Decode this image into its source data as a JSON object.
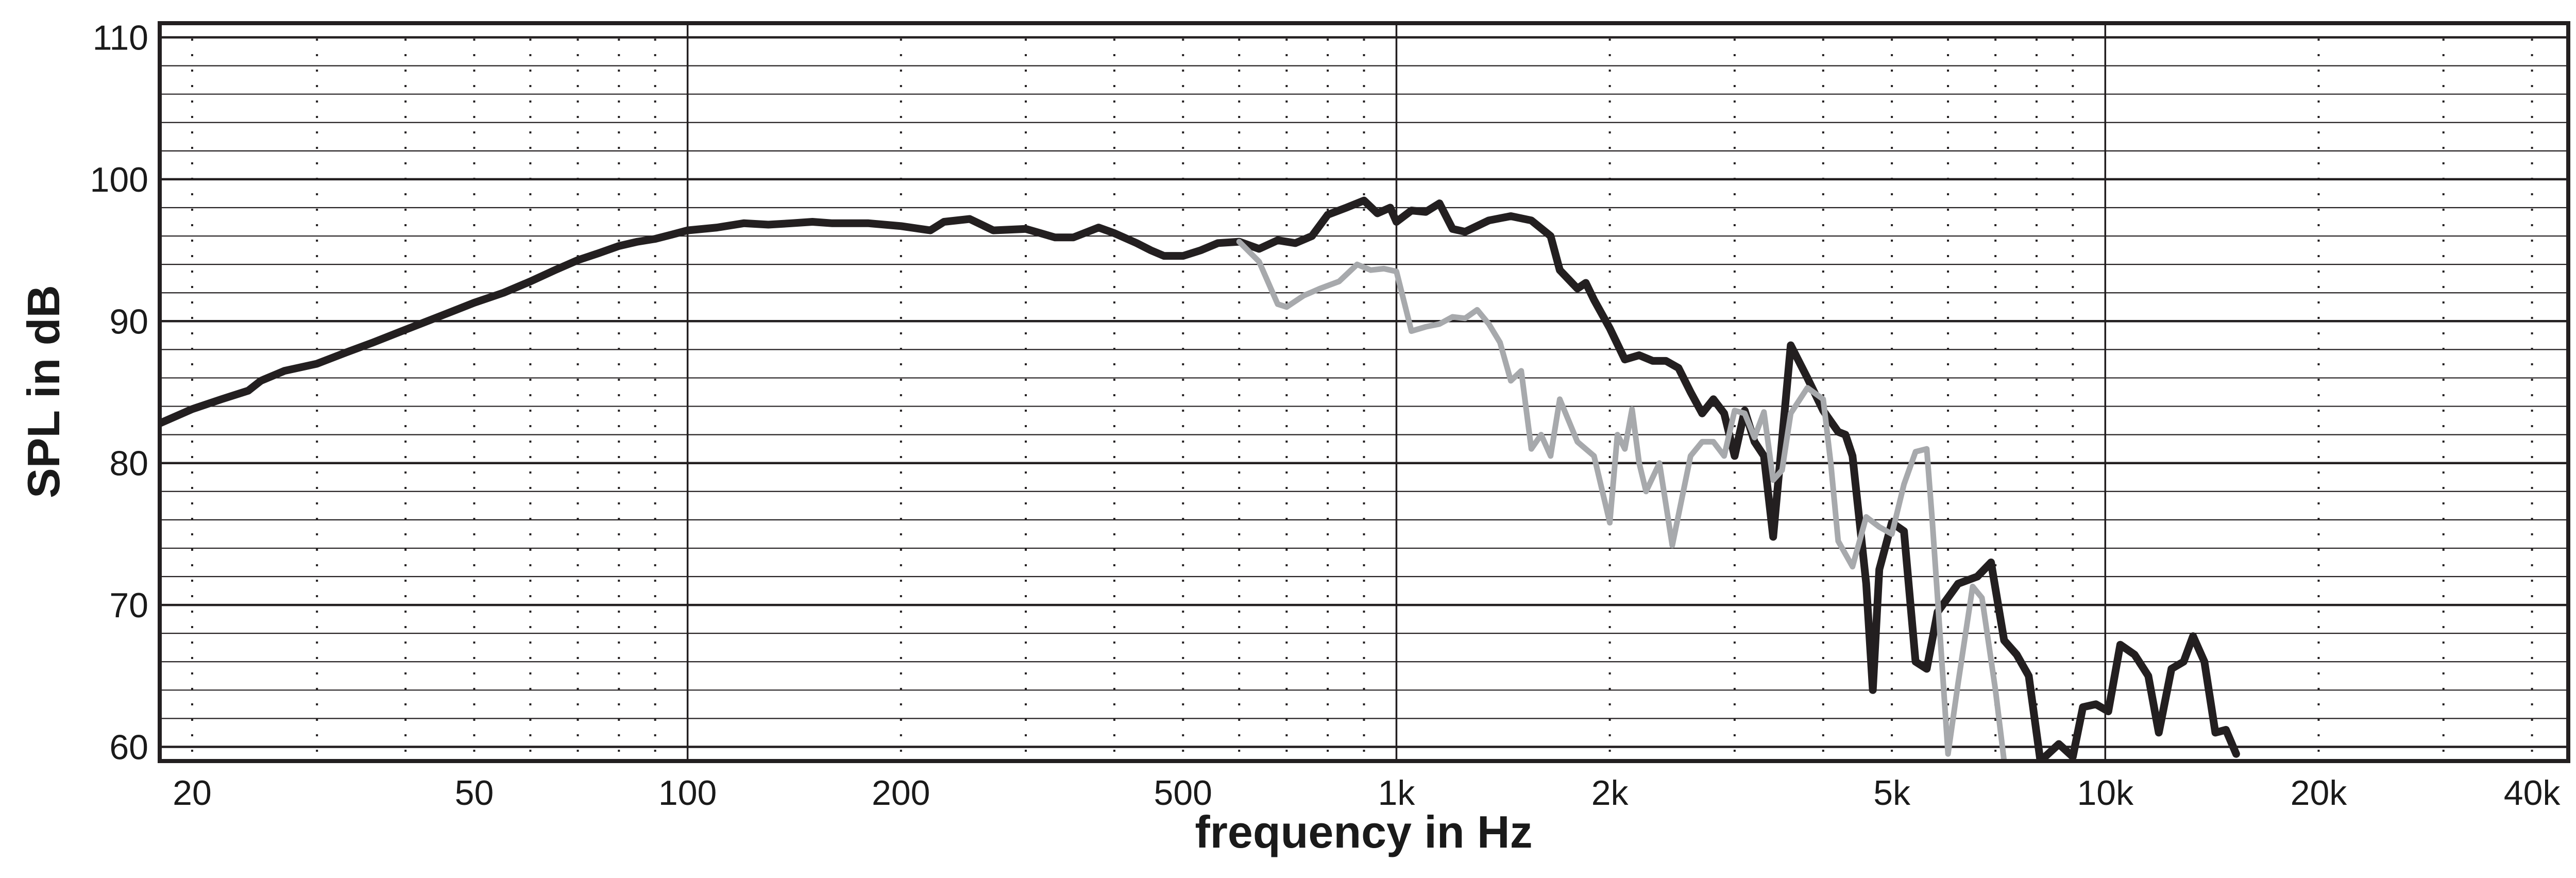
{
  "chart_data": {
    "type": "line",
    "xlabel": "frequency in Hz",
    "ylabel": "SPL in dB",
    "xscale": "log",
    "xlim": [
      18,
      45000
    ],
    "ylim": [
      59,
      111
    ],
    "grid": true,
    "x_tick_values": [
      20,
      50,
      100,
      200,
      500,
      1000,
      2000,
      5000,
      10000,
      20000,
      40000
    ],
    "x_tick_labels": [
      "20",
      "50",
      "100",
      "200",
      "500",
      "1k",
      "2k",
      "5k",
      "10k",
      "20k",
      "40k"
    ],
    "y_tick_values": [
      60,
      70,
      80,
      90,
      100,
      110
    ],
    "y_tick_labels": [
      "60",
      "70",
      "80",
      "90",
      "100",
      "110"
    ],
    "colors": {
      "series_1": "#231f20",
      "series_2": "#a7a9ac",
      "grid": "#231f20"
    },
    "series": [
      {
        "color": "#231f20",
        "points": [
          [
            18,
            82.8
          ],
          [
            20,
            83.8
          ],
          [
            22,
            84.5
          ],
          [
            24,
            85.1
          ],
          [
            25,
            85.8
          ],
          [
            27,
            86.5
          ],
          [
            30,
            87.0
          ],
          [
            33,
            87.8
          ],
          [
            36,
            88.5
          ],
          [
            40,
            89.4
          ],
          [
            45,
            90.4
          ],
          [
            50,
            91.3
          ],
          [
            55,
            92.0
          ],
          [
            60,
            92.8
          ],
          [
            65,
            93.6
          ],
          [
            70,
            94.3
          ],
          [
            75,
            94.8
          ],
          [
            80,
            95.3
          ],
          [
            85,
            95.6
          ],
          [
            90,
            95.8
          ],
          [
            95,
            96.1
          ],
          [
            100,
            96.4
          ],
          [
            110,
            96.6
          ],
          [
            120,
            96.9
          ],
          [
            130,
            96.8
          ],
          [
            140,
            96.9
          ],
          [
            150,
            97.0
          ],
          [
            160,
            96.9
          ],
          [
            180,
            96.9
          ],
          [
            200,
            96.7
          ],
          [
            220,
            96.4
          ],
          [
            230,
            97.0
          ],
          [
            250,
            97.2
          ],
          [
            270,
            96.4
          ],
          [
            300,
            96.5
          ],
          [
            330,
            95.9
          ],
          [
            350,
            95.9
          ],
          [
            380,
            96.6
          ],
          [
            400,
            96.2
          ],
          [
            430,
            95.5
          ],
          [
            450,
            95.0
          ],
          [
            470,
            94.6
          ],
          [
            500,
            94.6
          ],
          [
            530,
            95.0
          ],
          [
            560,
            95.5
          ],
          [
            600,
            95.6
          ],
          [
            640,
            95.1
          ],
          [
            680,
            95.7
          ],
          [
            720,
            95.5
          ],
          [
            760,
            96.0
          ],
          [
            800,
            97.5
          ],
          [
            850,
            98.0
          ],
          [
            900,
            98.5
          ],
          [
            940,
            97.6
          ],
          [
            980,
            98.0
          ],
          [
            1000,
            97.0
          ],
          [
            1050,
            97.8
          ],
          [
            1100,
            97.7
          ],
          [
            1150,
            98.3
          ],
          [
            1200,
            96.5
          ],
          [
            1250,
            96.3
          ],
          [
            1350,
            97.1
          ],
          [
            1450,
            97.4
          ],
          [
            1550,
            97.1
          ],
          [
            1650,
            96.0
          ],
          [
            1700,
            93.6
          ],
          [
            1800,
            92.3
          ],
          [
            1850,
            92.7
          ],
          [
            1900,
            91.5
          ],
          [
            2000,
            89.5
          ],
          [
            2100,
            87.3
          ],
          [
            2200,
            87.6
          ],
          [
            2300,
            87.2
          ],
          [
            2400,
            87.2
          ],
          [
            2500,
            86.7
          ],
          [
            2600,
            85.0
          ],
          [
            2700,
            83.5
          ],
          [
            2800,
            84.5
          ],
          [
            2900,
            83.5
          ],
          [
            3000,
            80.5
          ],
          [
            3100,
            83.7
          ],
          [
            3200,
            81.5
          ],
          [
            3300,
            80.5
          ],
          [
            3400,
            74.8
          ],
          [
            3600,
            88.3
          ],
          [
            3800,
            86.0
          ],
          [
            4000,
            83.7
          ],
          [
            4200,
            82.2
          ],
          [
            4300,
            82.0
          ],
          [
            4400,
            80.5
          ],
          [
            4600,
            71.5
          ],
          [
            4700,
            64.0
          ],
          [
            4800,
            72.5
          ],
          [
            5000,
            75.8
          ],
          [
            5200,
            75.2
          ],
          [
            5400,
            66.0
          ],
          [
            5600,
            65.5
          ],
          [
            5800,
            69.5
          ],
          [
            6200,
            71.5
          ],
          [
            6600,
            72.0
          ],
          [
            6900,
            73.0
          ],
          [
            7200,
            67.5
          ],
          [
            7500,
            66.5
          ],
          [
            7800,
            65.0
          ],
          [
            8100,
            59.0
          ],
          [
            8600,
            60.2
          ],
          [
            9000,
            59.3
          ],
          [
            9300,
            62.8
          ],
          [
            9700,
            63.0
          ],
          [
            10100,
            62.5
          ],
          [
            10500,
            67.2
          ],
          [
            11000,
            66.5
          ],
          [
            11500,
            65.0
          ],
          [
            11900,
            61.0
          ],
          [
            12400,
            65.5
          ],
          [
            12900,
            66.0
          ],
          [
            13300,
            67.8
          ],
          [
            13800,
            66.0
          ],
          [
            14300,
            61.0
          ],
          [
            14800,
            61.2
          ],
          [
            15300,
            59.5
          ]
        ]
      },
      {
        "color": "#a7a9ac",
        "points": [
          [
            600,
            95.6
          ],
          [
            640,
            94.2
          ],
          [
            680,
            91.2
          ],
          [
            700,
            91.0
          ],
          [
            740,
            91.8
          ],
          [
            780,
            92.3
          ],
          [
            830,
            92.8
          ],
          [
            880,
            94.0
          ],
          [
            920,
            93.6
          ],
          [
            960,
            93.7
          ],
          [
            1000,
            93.5
          ],
          [
            1050,
            89.3
          ],
          [
            1100,
            89.6
          ],
          [
            1150,
            89.8
          ],
          [
            1200,
            90.3
          ],
          [
            1250,
            90.2
          ],
          [
            1300,
            90.8
          ],
          [
            1350,
            89.8
          ],
          [
            1400,
            88.5
          ],
          [
            1450,
            85.8
          ],
          [
            1500,
            86.5
          ],
          [
            1550,
            81.0
          ],
          [
            1600,
            82.0
          ],
          [
            1650,
            80.5
          ],
          [
            1700,
            84.5
          ],
          [
            1800,
            81.5
          ],
          [
            1900,
            80.5
          ],
          [
            2000,
            75.8
          ],
          [
            2050,
            82.0
          ],
          [
            2100,
            81.0
          ],
          [
            2150,
            83.8
          ],
          [
            2200,
            80.0
          ],
          [
            2250,
            78.0
          ],
          [
            2350,
            80.0
          ],
          [
            2450,
            74.2
          ],
          [
            2600,
            80.5
          ],
          [
            2700,
            81.5
          ],
          [
            2800,
            81.5
          ],
          [
            2900,
            80.5
          ],
          [
            3000,
            83.7
          ],
          [
            3100,
            83.5
          ],
          [
            3200,
            81.8
          ],
          [
            3300,
            83.6
          ],
          [
            3400,
            78.8
          ],
          [
            3500,
            79.5
          ],
          [
            3600,
            83.5
          ],
          [
            3800,
            85.3
          ],
          [
            4000,
            84.5
          ],
          [
            4100,
            80.0
          ],
          [
            4200,
            74.5
          ],
          [
            4400,
            72.7
          ],
          [
            4600,
            76.2
          ],
          [
            4800,
            75.5
          ],
          [
            5000,
            75.0
          ],
          [
            5200,
            78.5
          ],
          [
            5400,
            80.8
          ],
          [
            5600,
            81.0
          ],
          [
            5700,
            76.0
          ],
          [
            5800,
            70.5
          ],
          [
            6000,
            59.5
          ],
          [
            6200,
            64.5
          ],
          [
            6500,
            71.3
          ],
          [
            6700,
            70.5
          ],
          [
            7000,
            64.0
          ],
          [
            7200,
            59.0
          ]
        ]
      }
    ]
  }
}
